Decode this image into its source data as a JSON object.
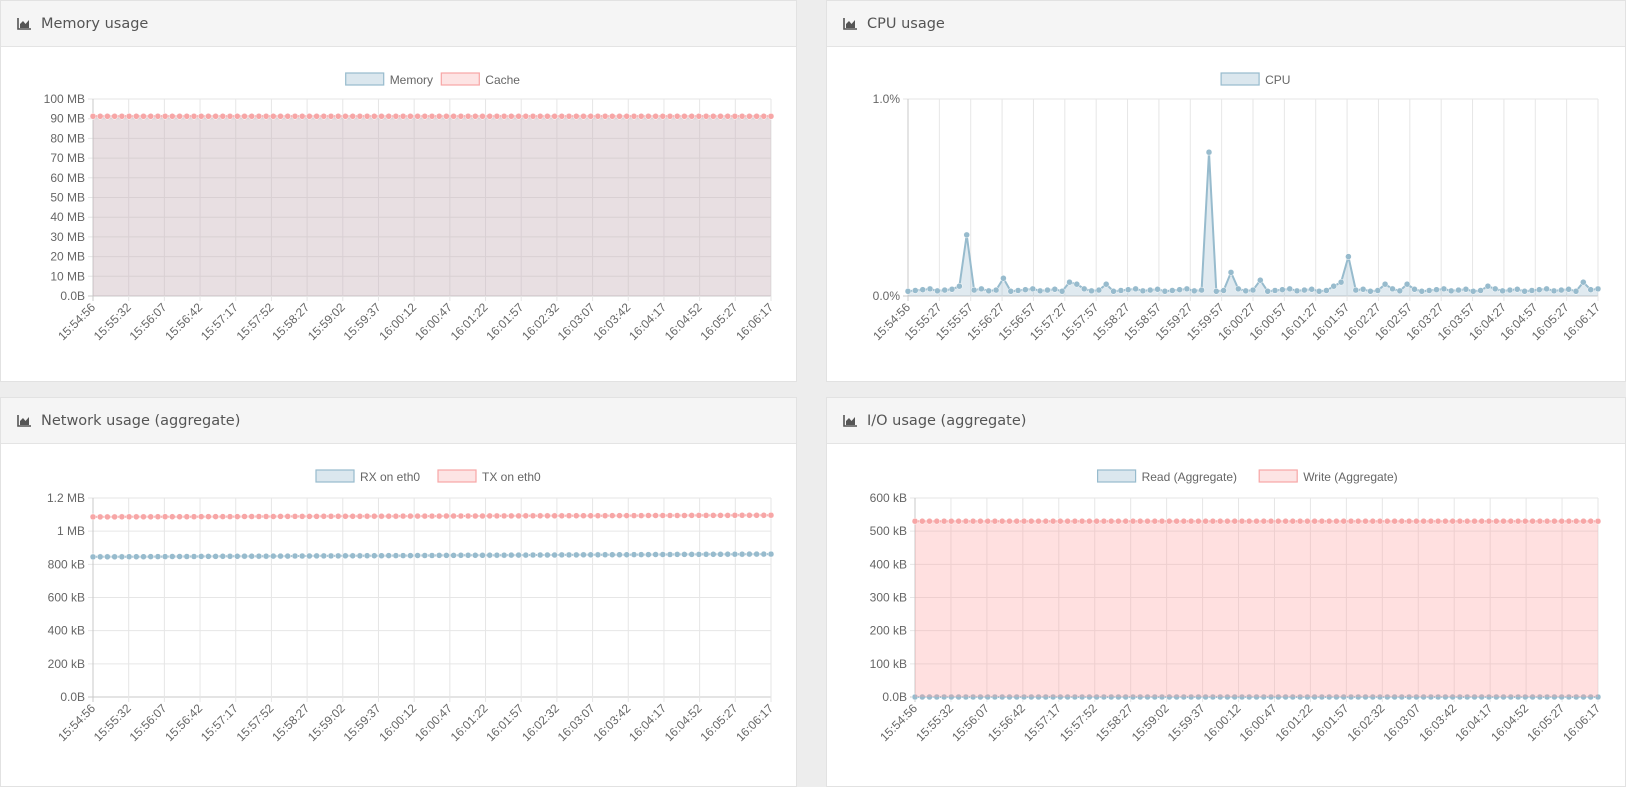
{
  "panels": [
    {
      "title": "Memory usage",
      "icon": "area-chart-icon",
      "chart_data": {
        "type": "area",
        "x_start": "15:54:56",
        "x_end": "16:06:17",
        "x_tick_labels": [
          "15:54:56",
          "15:55:32",
          "15:56:07",
          "15:56:42",
          "15:57:17",
          "15:57:52",
          "15:58:27",
          "15:59:02",
          "15:59:37",
          "16:00:12",
          "16:00:47",
          "16:01:22",
          "16:01:57",
          "16:02:32",
          "16:03:07",
          "16:03:42",
          "16:04:17",
          "16:04:52",
          "16:05:27",
          "16:06:17"
        ],
        "y_tick_labels": [
          "0.0B",
          "10 MB",
          "20 MB",
          "30 MB",
          "40 MB",
          "50 MB",
          "60 MB",
          "70 MB",
          "80 MB",
          "90 MB",
          "100 MB"
        ],
        "y_range": [
          0,
          100
        ],
        "y_unit": "MB",
        "point_count": 95,
        "legend_position": "top",
        "grid": true,
        "series": [
          {
            "name": "Memory",
            "color": "#97bbcd",
            "fill": "rgba(151,187,205,0.25)",
            "constant": 91.2
          },
          {
            "name": "Cache",
            "color": "#f7a6a6",
            "fill": "rgba(247,166,166,0.2)",
            "constant": 91.2
          }
        ]
      }
    },
    {
      "title": "CPU usage",
      "icon": "area-chart-icon",
      "chart_data": {
        "type": "area",
        "x_start": "15:54:56",
        "x_end": "16:06:17",
        "x_tick_labels": [
          "15:54:56",
          "15:55:27",
          "15:55:57",
          "15:56:27",
          "15:56:57",
          "15:57:27",
          "15:57:57",
          "15:58:27",
          "15:58:57",
          "15:59:27",
          "15:59:57",
          "16:00:27",
          "16:00:57",
          "16:01:27",
          "16:01:57",
          "16:02:27",
          "16:02:57",
          "16:03:27",
          "16:03:57",
          "16:04:27",
          "16:04:57",
          "16:05:27",
          "16:06:17"
        ],
        "y_tick_labels": [
          "0.0%",
          "1.0%"
        ],
        "y_range": [
          0,
          1
        ],
        "y_unit": "%",
        "point_count": 95,
        "legend_position": "top",
        "grid": true,
        "series": [
          {
            "name": "CPU",
            "color": "#97bbcd",
            "fill": "rgba(151,187,205,0.3)",
            "base": 0.03,
            "spikes": [
              [
                7,
                0.05
              ],
              [
                8,
                0.31
              ],
              [
                9,
                0.03
              ],
              [
                13,
                0.09
              ],
              [
                22,
                0.07
              ],
              [
                23,
                0.06
              ],
              [
                27,
                0.06
              ],
              [
                41,
                0.73
              ],
              [
                44,
                0.12
              ],
              [
                48,
                0.08
              ],
              [
                58,
                0.05
              ],
              [
                59,
                0.07
              ],
              [
                60,
                0.2
              ],
              [
                65,
                0.06
              ],
              [
                68,
                0.06
              ],
              [
                79,
                0.05
              ],
              [
                92,
                0.07
              ]
            ]
          }
        ]
      }
    },
    {
      "title": "Network usage (aggregate)",
      "icon": "area-chart-icon",
      "chart_data": {
        "type": "line",
        "x_start": "15:54:56",
        "x_end": "16:06:17",
        "x_tick_labels": [
          "15:54:56",
          "15:55:32",
          "15:56:07",
          "15:56:42",
          "15:57:17",
          "15:57:52",
          "15:58:27",
          "15:59:02",
          "15:59:37",
          "16:00:12",
          "16:00:47",
          "16:01:22",
          "16:01:57",
          "16:02:32",
          "16:03:07",
          "16:03:42",
          "16:04:17",
          "16:04:52",
          "16:05:27",
          "16:06:17"
        ],
        "y_tick_labels": [
          "0.0B",
          "200 kB",
          "400 kB",
          "600 kB",
          "800 kB",
          "1 MB",
          "1.2 MB"
        ],
        "y_range": [
          0,
          1200
        ],
        "y_unit": "kB",
        "point_count": 95,
        "legend_position": "top",
        "grid": true,
        "series": [
          {
            "name": "RX on eth0",
            "color": "#97bbcd",
            "fill": "none",
            "start": 845,
            "end": 862
          },
          {
            "name": "TX on eth0",
            "color": "#f7a6a6",
            "fill": "none",
            "start": 1086,
            "end": 1096
          }
        ]
      }
    },
    {
      "title": "I/O usage (aggregate)",
      "icon": "area-chart-icon",
      "chart_data": {
        "type": "area",
        "x_start": "15:54:56",
        "x_end": "16:06:17",
        "x_tick_labels": [
          "15:54:56",
          "15:55:32",
          "15:56:07",
          "15:56:42",
          "15:57:17",
          "15:57:52",
          "15:58:27",
          "15:59:02",
          "15:59:37",
          "16:00:12",
          "16:00:47",
          "16:01:22",
          "16:01:57",
          "16:02:32",
          "16:03:07",
          "16:03:42",
          "16:04:17",
          "16:04:52",
          "16:05:27",
          "16:06:17"
        ],
        "y_tick_labels": [
          "0.0B",
          "100 kB",
          "200 kB",
          "300 kB",
          "400 kB",
          "500 kB",
          "600 kB"
        ],
        "y_range": [
          0,
          600
        ],
        "y_unit": "kB",
        "point_count": 95,
        "legend_position": "top",
        "grid": true,
        "series": [
          {
            "name": "Read (Aggregate)",
            "color": "#97bbcd",
            "fill": "none",
            "constant": 0
          },
          {
            "name": "Write (Aggregate)",
            "color": "#f7a6a6",
            "fill": "rgba(255,160,160,0.32)",
            "constant": 530
          }
        ]
      }
    }
  ]
}
